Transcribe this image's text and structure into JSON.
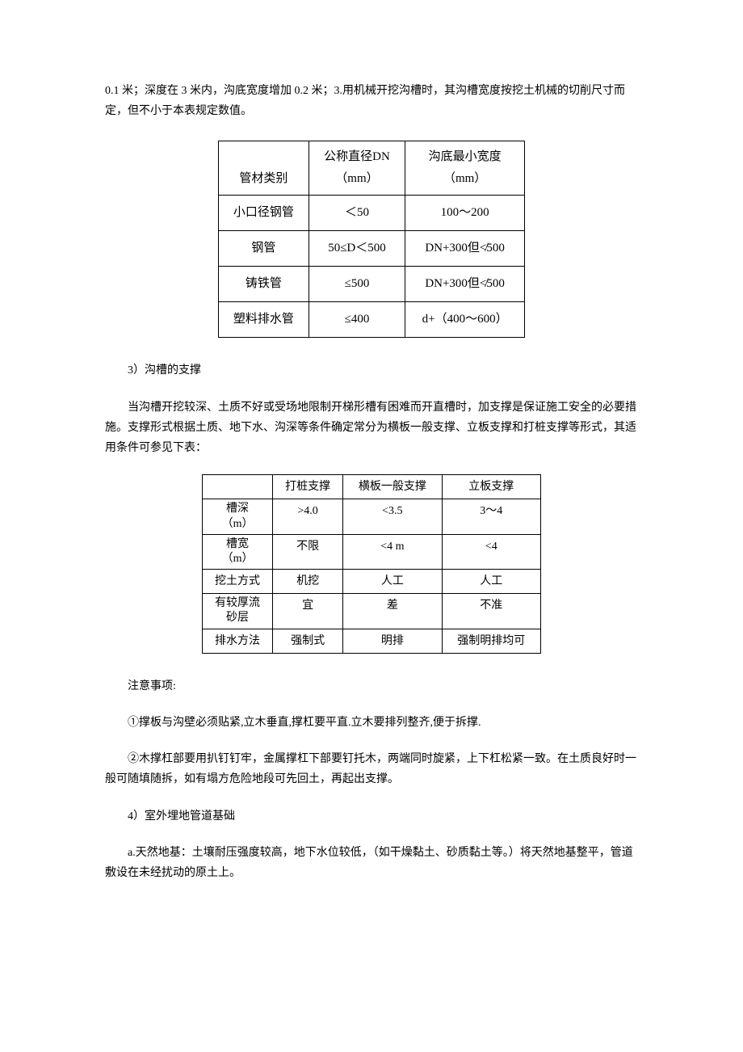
{
  "intro_text": "0.1 米；深度在 3 米内，沟底宽度增加 0.2 米；3.用机械开挖沟槽时，其沟槽宽度按挖土机械的切削尺寸而定，但不小于本表规定数值。",
  "table1": {
    "headers": {
      "col1_line1": "管材类别",
      "col2_line1": "公称直径DN",
      "col2_line2": "（mm）",
      "col3_line1": "沟底最小宽度",
      "col3_line2": "（mm）"
    },
    "rows": [
      {
        "c1": "小口径钢管",
        "c2": "＜50",
        "c3": "100～200"
      },
      {
        "c1": "钢管",
        "c2": "50≤D＜500",
        "c3": "DN+300但≮500"
      },
      {
        "c1": "铸铁管",
        "c2": "≤500",
        "c3": "DN+300但≮500"
      },
      {
        "c1": "塑料排水管",
        "c2": "≤400",
        "c3": "d+（400～600）"
      }
    ]
  },
  "section3_heading": "3）沟槽的支撑",
  "section3_para": "当沟槽开挖较深、土质不好或受场地限制开梯形槽有困难而开直槽时，加支撑是保证施工安全的必要措施。支撑形式根据土质、地下水、沟深等条件确定常分为横板一般支撑、立板支撑和打桩支撑等形式，其适用条件可参见下表：",
  "table2": {
    "headers": {
      "blank": "",
      "h1": "打桩支撑",
      "h2": "横板一般支撑",
      "h3": "立板支撑"
    },
    "rows": [
      {
        "label_l1": "槽深",
        "label_l2": "（m）",
        "c1": ">4.0",
        "c2": "<3.5",
        "c3": "3～4"
      },
      {
        "label_l1": "槽宽",
        "label_l2": "（m）",
        "c1": "不限",
        "c2": "<4 m",
        "c3": "<4"
      },
      {
        "label": "挖土方式",
        "c1": "机挖",
        "c2": "人工",
        "c3": "人工"
      },
      {
        "label_l1": "有较厚流",
        "label_l2": "砂层",
        "c1": "宜",
        "c2": "差",
        "c3": "不准"
      },
      {
        "label": "排水方法",
        "c1": "强制式",
        "c2": "明排",
        "c3": "强制明排均可"
      }
    ]
  },
  "notes_heading": "注意事项:",
  "note1": "①撑板与沟壁必须贴紧,立木垂直,撑杠要平直.立木要排列整齐,便于拆撑.",
  "note2": "②木撑杠部要用扒钉钉牢，金属撑杠下部要钉托木，两端同时旋紧，上下杠松紧一致。在土质良好时一般可随填随拆，如有塌方危险地段可先回土，再起出支撑。",
  "section4_heading": "4）室外埋地管道基础",
  "section4_para": "a.天然地基：土壤耐压强度较高，地下水位较低，（如干燥黏土、砂质黏土等。）将天然地基整平，管道敷设在未经扰动的原土上。"
}
